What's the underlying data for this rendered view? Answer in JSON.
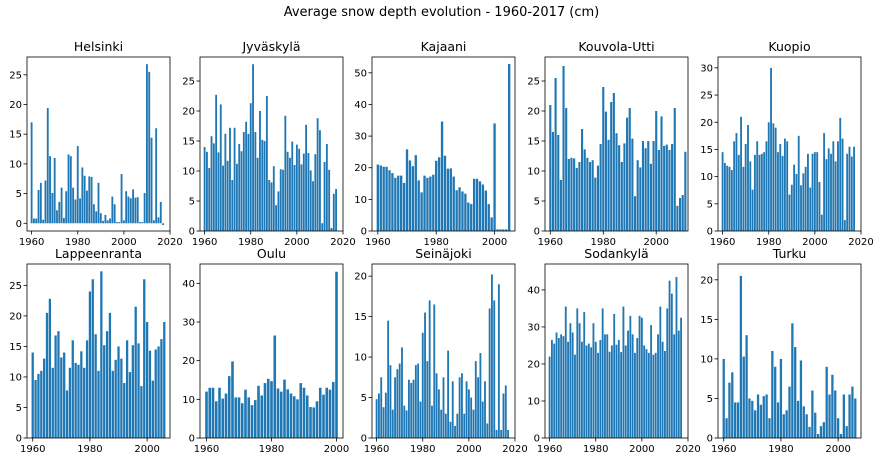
{
  "figure_title": "Average snow depth evolution - 1960-2017 (cm)",
  "bar_color": "#1f77b4",
  "chart_data": [
    {
      "type": "bar",
      "title": "Helsinki",
      "xlim": [
        1958,
        2020
      ],
      "ylim": [
        -1.3,
        28
      ],
      "xticks": [
        1960,
        1980,
        2000,
        2020
      ],
      "yticks": [
        0,
        5,
        10,
        15,
        20,
        25
      ],
      "x": [
        1960,
        1961,
        1962,
        1963,
        1964,
        1965,
        1966,
        1967,
        1968,
        1969,
        1970,
        1971,
        1972,
        1973,
        1974,
        1975,
        1976,
        1977,
        1978,
        1979,
        1980,
        1981,
        1982,
        1983,
        1984,
        1985,
        1986,
        1987,
        1988,
        1989,
        1990,
        1991,
        1992,
        1993,
        1994,
        1995,
        1996,
        1997,
        1998,
        1999,
        2000,
        2001,
        2002,
        2003,
        2004,
        2005,
        2006,
        2007,
        2008,
        2009,
        2010,
        2011,
        2012,
        2013,
        2014,
        2015,
        2016,
        2017
      ],
      "values": [
        17,
        0.8,
        0.8,
        5.6,
        6.8,
        0.6,
        7.2,
        19.4,
        11.3,
        5.1,
        11,
        2.2,
        3.6,
        6,
        0.9,
        5.4,
        11.6,
        11.3,
        6,
        4,
        13,
        4.2,
        9.4,
        8,
        5.5,
        7.9,
        7.8,
        3.2,
        2,
        6.8,
        1.7,
        0.4,
        1.4,
        0.5,
        0.8,
        4.5,
        3.2,
        0.2,
        0.2,
        8.3,
        0.5,
        5.4,
        4.5,
        4.2,
        5.7,
        4.3,
        4.4,
        0.2,
        0.2,
        5.1,
        26.8,
        25.5,
        14.4,
        0.5,
        16,
        1,
        3.6,
        -0.3
      ]
    },
    {
      "type": "bar",
      "title": "Jyväskylä",
      "xlim": [
        1958,
        2020
      ],
      "ylim": [
        0,
        29
      ],
      "xticks": [
        1960,
        1980,
        2000,
        2020
      ],
      "yticks": [
        0,
        5,
        10,
        15,
        20,
        25
      ],
      "x": [
        1960,
        1961,
        1962,
        1963,
        1964,
        1965,
        1966,
        1967,
        1968,
        1969,
        1970,
        1971,
        1972,
        1973,
        1974,
        1975,
        1976,
        1977,
        1978,
        1979,
        1980,
        1981,
        1982,
        1983,
        1984,
        1985,
        1986,
        1987,
        1988,
        1989,
        1990,
        1991,
        1992,
        1993,
        1994,
        1995,
        1996,
        1997,
        1998,
        1999,
        2000,
        2001,
        2002,
        2003,
        2004,
        2005,
        2006,
        2007,
        2008,
        2009,
        2010,
        2011,
        2012,
        2013,
        2014,
        2015,
        2016,
        2017
      ],
      "values": [
        14,
        13.2,
        10.5,
        15.8,
        14.6,
        22.7,
        13.1,
        21.1,
        10.9,
        16.2,
        11.7,
        17.2,
        8.5,
        17.2,
        11.2,
        14.5,
        13.3,
        16.5,
        18.2,
        16.2,
        21.3,
        27.8,
        16.5,
        12.2,
        20,
        15.2,
        15,
        22.5,
        8.5,
        8.1,
        10.8,
        4.3,
        6.6,
        10.3,
        10.2,
        19.2,
        13.2,
        12.2,
        14.9,
        11,
        14.4,
        13.7,
        11.1,
        12.9,
        17.7,
        13,
        10.1,
        8.3,
        12.8,
        18.8,
        16.8,
        1.3,
        11.5,
        14.5,
        10.2,
        0.5,
        6.2,
        7
      ]
    },
    {
      "type": "bar",
      "title": "Kajaani",
      "xlim": [
        1958,
        2007
      ],
      "ylim": [
        0,
        55
      ],
      "xticks": [
        1960,
        1980,
        2000
      ],
      "yticks": [
        0,
        10,
        20,
        30,
        40,
        50
      ],
      "x": [
        1960,
        1961,
        1962,
        1963,
        1964,
        1965,
        1966,
        1967,
        1968,
        1969,
        1970,
        1971,
        1972,
        1973,
        1974,
        1975,
        1976,
        1977,
        1978,
        1979,
        1980,
        1981,
        1982,
        1983,
        1984,
        1985,
        1986,
        1987,
        1988,
        1989,
        1990,
        1991,
        1992,
        1993,
        1994,
        1995,
        1996,
        1997,
        1998,
        1999,
        2000,
        2001,
        2002,
        2003,
        2004,
        2005
      ],
      "values": [
        21,
        20.7,
        20.3,
        20.3,
        19.2,
        18.3,
        16.8,
        17.5,
        17.5,
        15.2,
        25.8,
        22.3,
        20.5,
        24,
        16,
        12.2,
        17.5,
        16.8,
        17.2,
        17.8,
        22.2,
        23.3,
        34.6,
        23.8,
        19.7,
        19.8,
        17.2,
        12.9,
        13.8,
        12.5,
        11.8,
        9,
        8.5,
        16.5,
        16.5,
        15.7,
        14.7,
        12.8,
        8.5,
        4.3,
        34,
        0.5,
        0.5,
        0.5,
        0.5,
        52.8
      ]
    },
    {
      "type": "bar",
      "title": "Kouvola-Utti",
      "xlim": [
        1958,
        2012
      ],
      "ylim": [
        0,
        29
      ],
      "xticks": [
        1960,
        1980,
        2000
      ],
      "yticks": [
        0,
        5,
        10,
        15,
        20,
        25
      ],
      "x": [
        1960,
        1961,
        1962,
        1963,
        1964,
        1965,
        1966,
        1967,
        1968,
        1969,
        1970,
        1971,
        1972,
        1973,
        1974,
        1975,
        1976,
        1977,
        1978,
        1979,
        1980,
        1981,
        1982,
        1983,
        1984,
        1985,
        1986,
        1987,
        1988,
        1989,
        1990,
        1991,
        1992,
        1993,
        1994,
        1995,
        1996,
        1997,
        1998,
        1999,
        2000,
        2001,
        2002,
        2003,
        2004,
        2005,
        2006,
        2007,
        2008,
        2009,
        2010,
        2011
      ],
      "values": [
        21,
        16.5,
        25.5,
        16,
        8.5,
        27.5,
        20.5,
        12,
        12.2,
        12.1,
        10.5,
        11.5,
        17,
        13.6,
        12.2,
        11.5,
        11.8,
        8.9,
        10.9,
        14.5,
        24,
        19.9,
        15.2,
        21.5,
        23,
        16.3,
        14.3,
        11.5,
        14.6,
        18.9,
        20.5,
        15.4,
        5.8,
        11.8,
        10.6,
        15,
        13.8,
        15,
        11.2,
        15,
        20,
        13.5,
        19.1,
        14.2,
        14.4,
        13.5,
        14.5,
        20.5,
        4.2,
        5.5,
        6,
        13.2
      ]
    },
    {
      "type": "bar",
      "title": "Kuopio",
      "xlim": [
        1958,
        2020
      ],
      "ylim": [
        0,
        32
      ],
      "xticks": [
        1960,
        1980,
        2000,
        2020
      ],
      "yticks": [
        0,
        5,
        10,
        15,
        20,
        25,
        30
      ],
      "x": [
        1960,
        1961,
        1962,
        1963,
        1964,
        1965,
        1966,
        1967,
        1968,
        1969,
        1970,
        1971,
        1972,
        1973,
        1974,
        1975,
        1976,
        1977,
        1978,
        1979,
        1980,
        1981,
        1982,
        1983,
        1984,
        1985,
        1986,
        1987,
        1988,
        1989,
        1990,
        1991,
        1992,
        1993,
        1994,
        1995,
        1996,
        1997,
        1998,
        1999,
        2000,
        2001,
        2002,
        2003,
        2004,
        2005,
        2006,
        2007,
        2008,
        2009,
        2010,
        2011,
        2012,
        2013,
        2014,
        2015,
        2016,
        2017
      ],
      "values": [
        14.5,
        12.5,
        12,
        11.8,
        11.2,
        16.5,
        18,
        14,
        21,
        11.8,
        16,
        19.5,
        12.8,
        7.6,
        14,
        16.5,
        14,
        14.2,
        14.5,
        16.5,
        20,
        30,
        19.8,
        19,
        14.5,
        16,
        13.8,
        17,
        16.5,
        6.7,
        8.5,
        12.2,
        10.5,
        17.5,
        8.4,
        10.6,
        11.8,
        14.2,
        8,
        14.2,
        14.5,
        14.5,
        9,
        3,
        18,
        13.2,
        15.2,
        14.2,
        16.5,
        12.8,
        16.5,
        20.8,
        17,
        2,
        14.2,
        15.5,
        13.7,
        15.5
      ]
    },
    {
      "type": "bar",
      "title": "Lappeenranta",
      "xlim": [
        1958,
        2008
      ],
      "ylim": [
        0,
        28.5
      ],
      "xticks": [
        1960,
        1980,
        2000
      ],
      "yticks": [
        0,
        5,
        10,
        15,
        20,
        25
      ],
      "x": [
        1960,
        1961,
        1962,
        1963,
        1964,
        1965,
        1966,
        1967,
        1968,
        1969,
        1970,
        1971,
        1972,
        1973,
        1974,
        1975,
        1976,
        1977,
        1978,
        1979,
        1980,
        1981,
        1982,
        1983,
        1984,
        1985,
        1986,
        1987,
        1988,
        1989,
        1990,
        1991,
        1992,
        1993,
        1994,
        1995,
        1996,
        1997,
        1998,
        1999,
        2000,
        2001,
        2002,
        2003,
        2004,
        2005,
        2006
      ],
      "values": [
        14,
        9.5,
        10.5,
        11,
        13,
        20.5,
        22.8,
        11.5,
        16.8,
        17.5,
        13.2,
        14,
        7.8,
        11.5,
        16,
        12.3,
        12,
        14.2,
        11.5,
        16,
        24,
        26,
        17,
        11,
        27.3,
        15.2,
        17.5,
        20.5,
        11,
        12.8,
        15,
        13,
        9,
        16,
        10.8,
        15.2,
        21.5,
        15.5,
        8.5,
        26,
        19,
        14.3,
        9.4,
        14.5,
        15,
        16.2,
        19
      ]
    },
    {
      "type": "bar",
      "title": "Oulu",
      "xlim": [
        1958,
        2002
      ],
      "ylim": [
        0,
        45
      ],
      "xticks": [
        1960,
        1980,
        2000
      ],
      "yticks": [
        0,
        10,
        20,
        30,
        40
      ],
      "x": [
        1960,
        1961,
        1962,
        1963,
        1964,
        1965,
        1966,
        1967,
        1968,
        1969,
        1970,
        1971,
        1972,
        1973,
        1974,
        1975,
        1976,
        1977,
        1978,
        1979,
        1980,
        1981,
        1982,
        1983,
        1984,
        1985,
        1986,
        1987,
        1988,
        1989,
        1990,
        1991,
        1992,
        1993,
        1994,
        1995,
        1996,
        1997,
        1998,
        1999,
        2000
      ],
      "values": [
        12,
        13,
        13,
        9.5,
        13,
        10.2,
        11.5,
        16,
        19.8,
        10.5,
        10.5,
        9,
        12.5,
        10.5,
        8.5,
        9.8,
        13.5,
        11,
        14.2,
        15.3,
        14.7,
        26.5,
        12.8,
        12,
        15.1,
        12.6,
        11.5,
        10.8,
        10,
        14.2,
        13,
        11,
        8,
        7.9,
        9.5,
        13,
        11.2,
        13,
        12.5,
        14.5,
        43
      ]
    },
    {
      "type": "bar",
      "title": "Seinäjoki",
      "xlim": [
        1958,
        2020
      ],
      "ylim": [
        0,
        21.5
      ],
      "xticks": [
        1960,
        1980,
        2000,
        2020
      ],
      "yticks": [
        0,
        5,
        10,
        15,
        20
      ],
      "x": [
        1960,
        1961,
        1962,
        1963,
        1964,
        1965,
        1966,
        1967,
        1968,
        1969,
        1970,
        1971,
        1972,
        1973,
        1974,
        1975,
        1976,
        1977,
        1978,
        1979,
        1980,
        1981,
        1982,
        1983,
        1984,
        1985,
        1986,
        1987,
        1988,
        1989,
        1990,
        1991,
        1992,
        1993,
        1994,
        1995,
        1996,
        1997,
        1998,
        1999,
        2000,
        2001,
        2002,
        2003,
        2004,
        2005,
        2006,
        2007,
        2008,
        2009,
        2010,
        2011,
        2012,
        2013,
        2014,
        2015,
        2016,
        2017
      ],
      "values": [
        4.8,
        5.5,
        7.5,
        3.8,
        5.6,
        14.5,
        9,
        3.5,
        7.5,
        8.5,
        9.2,
        11.2,
        4,
        3.4,
        7.2,
        6.8,
        7.2,
        9,
        9.2,
        4.5,
        13,
        15.5,
        9.5,
        17,
        4,
        16.5,
        8,
        6,
        3.5,
        7.5,
        3,
        10.8,
        2,
        7,
        1.5,
        3,
        7.5,
        8,
        3,
        7,
        6,
        5,
        3.5,
        9.5,
        7.5,
        10.5,
        4.5,
        7,
        1.8,
        16,
        20.2,
        17,
        1,
        19,
        1,
        5.5,
        6.5,
        1
      ]
    },
    {
      "type": "bar",
      "title": "Sodankylä",
      "xlim": [
        1958,
        2020
      ],
      "ylim": [
        0,
        47
      ],
      "xticks": [
        1960,
        1980,
        2000,
        2020
      ],
      "yticks": [
        0,
        10,
        20,
        30,
        40
      ],
      "x": [
        1960,
        1961,
        1962,
        1963,
        1964,
        1965,
        1966,
        1967,
        1968,
        1969,
        1970,
        1971,
        1972,
        1973,
        1974,
        1975,
        1976,
        1977,
        1978,
        1979,
        1980,
        1981,
        1982,
        1983,
        1984,
        1985,
        1986,
        1987,
        1988,
        1989,
        1990,
        1991,
        1992,
        1993,
        1994,
        1995,
        1996,
        1997,
        1998,
        1999,
        2000,
        2001,
        2002,
        2003,
        2004,
        2005,
        2006,
        2007,
        2008,
        2009,
        2010,
        2011,
        2012,
        2013,
        2014,
        2015,
        2016,
        2017
      ],
      "values": [
        22,
        26.5,
        25.5,
        28.5,
        27,
        28,
        27.5,
        35.5,
        26,
        31,
        28.5,
        22.5,
        35,
        31,
        26,
        34,
        25,
        25.5,
        24.5,
        31,
        26,
        23,
        26.5,
        35,
        28,
        28,
        23.3,
        25,
        33.5,
        25.2,
        26.5,
        23.2,
        35.5,
        25,
        29,
        33,
        28,
        23,
        27,
        33,
        32.5,
        25,
        24,
        23,
        30.5,
        22.5,
        23,
        28,
        35.5,
        26,
        23.5,
        35,
        42.5,
        39,
        28,
        43.5,
        29,
        32.5
      ]
    },
    {
      "type": "bar",
      "title": "Turku",
      "xlim": [
        1958,
        2008
      ],
      "ylim": [
        0,
        22
      ],
      "xticks": [
        1960,
        1980,
        2000
      ],
      "yticks": [
        0,
        5,
        10,
        15,
        20
      ],
      "x": [
        1960,
        1961,
        1962,
        1963,
        1964,
        1965,
        1966,
        1967,
        1968,
        1969,
        1970,
        1971,
        1972,
        1973,
        1974,
        1975,
        1976,
        1977,
        1978,
        1979,
        1980,
        1981,
        1982,
        1983,
        1984,
        1985,
        1986,
        1987,
        1988,
        1989,
        1990,
        1991,
        1992,
        1993,
        1994,
        1995,
        1996,
        1997,
        1998,
        1999,
        2000,
        2001,
        2002,
        2003,
        2004,
        2005,
        2006
      ],
      "values": [
        10,
        2.5,
        7,
        8.3,
        4.5,
        4.5,
        20.5,
        10.3,
        13,
        5,
        4.7,
        3.5,
        5.5,
        4.2,
        5.3,
        5.5,
        2.5,
        11,
        9,
        4.5,
        10,
        3,
        3.5,
        6.5,
        14.5,
        11.5,
        4.7,
        9.8,
        4,
        3,
        1.4,
        6,
        3.2,
        0.5,
        1.5,
        2,
        9,
        5.5,
        8,
        6,
        2.5,
        0.5,
        5.5,
        1.5,
        5.5,
        6.5,
        5
      ]
    }
  ]
}
